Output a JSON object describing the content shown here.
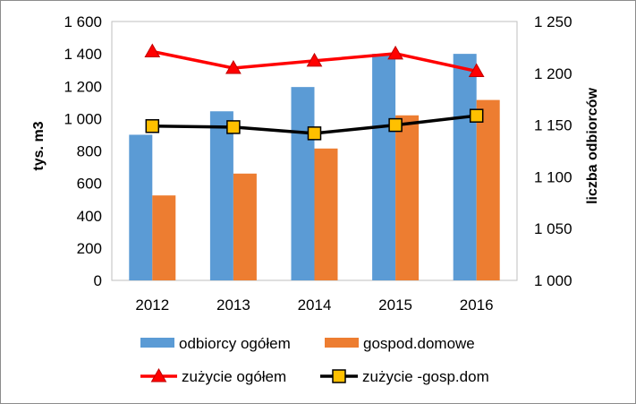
{
  "chart_data": {
    "type": "bar",
    "categories": [
      "2012",
      "2013",
      "2014",
      "2015",
      "2016"
    ],
    "series": [
      {
        "name": "odbiorcy ogółem",
        "kind": "bar",
        "axis": "left",
        "color": "#5b9bd5",
        "values": [
          900,
          1045,
          1195,
          1400,
          1400
        ]
      },
      {
        "name": "gospod.domowe",
        "kind": "bar",
        "axis": "left",
        "color": "#ed7d31",
        "values": [
          525,
          660,
          815,
          1020,
          1115
        ]
      },
      {
        "name": "zużycie ogółem",
        "kind": "line",
        "axis": "right",
        "color": "#ff0000",
        "marker": "triangle",
        "values": [
          1221,
          1205,
          1212,
          1219,
          1202
        ]
      },
      {
        "name": "zużycie -gosp.dom",
        "kind": "line",
        "axis": "right",
        "color": "#000000",
        "marker": "square",
        "marker_color": "#ffc000",
        "values": [
          1149,
          1148,
          1142,
          1150,
          1159
        ]
      }
    ],
    "y_left": {
      "label": "tys. m3",
      "min": 0,
      "max": 1600,
      "step": 200,
      "ticks": [
        "0",
        "200",
        "400",
        "600",
        "800",
        "1 000",
        "1 200",
        "1 400",
        "1 600"
      ]
    },
    "y_right": {
      "label": "liczba odbiorców",
      "min": 1000,
      "max": 1250,
      "step": 50,
      "ticks": [
        "1 000",
        "1 050",
        "1 100",
        "1 150",
        "1 200",
        "1 250"
      ]
    },
    "grid": false,
    "legend": "bottom"
  }
}
